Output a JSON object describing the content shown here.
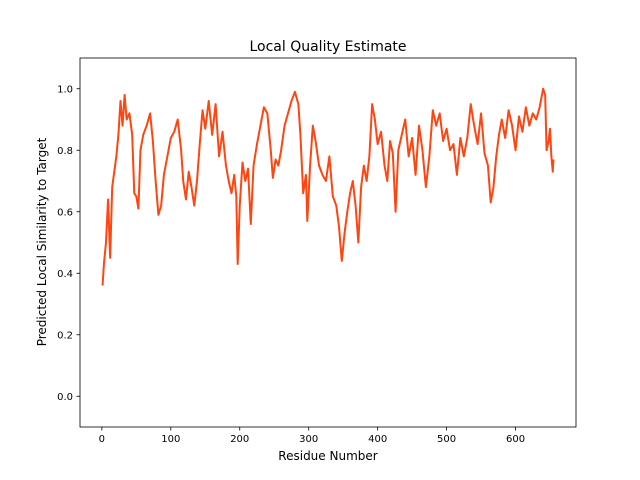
{
  "chart_data": {
    "type": "line",
    "title": "Local Quality Estimate",
    "x_label": "Residue Number",
    "y_label": "Predicted Local Similarity to Target",
    "series": [
      {
        "color": "#ff4511",
        "x": [
          1,
          3,
          6,
          9,
          12,
          15,
          18,
          21,
          24,
          27,
          30,
          33,
          36,
          40,
          44,
          47,
          50,
          53,
          56,
          60,
          65,
          70,
          74,
          78,
          82,
          86,
          90,
          95,
          100,
          105,
          110,
          115,
          118,
          122,
          126,
          130,
          134,
          138,
          142,
          146,
          150,
          155,
          160,
          165,
          170,
          175,
          180,
          184,
          188,
          192,
          195,
          197,
          200,
          204,
          208,
          212,
          216,
          220,
          225,
          230,
          235,
          240,
          245,
          248,
          252,
          256,
          260,
          265,
          270,
          275,
          280,
          285,
          288,
          292,
          296,
          298,
          302,
          306,
          310,
          315,
          320,
          325,
          330,
          335,
          340,
          344,
          348,
          352,
          356,
          360,
          364,
          368,
          372,
          376,
          380,
          384,
          388,
          392,
          396,
          400,
          405,
          410,
          414,
          418,
          422,
          426,
          430,
          435,
          440,
          445,
          450,
          455,
          460,
          465,
          470,
          475,
          480,
          485,
          490,
          495,
          500,
          505,
          510,
          515,
          520,
          525,
          530,
          535,
          540,
          545,
          550,
          555,
          560,
          564,
          568,
          572,
          576,
          580,
          585,
          590,
          595,
          600,
          605,
          610,
          615,
          620,
          625,
          630,
          635,
          640,
          643,
          645,
          648,
          650,
          652,
          654,
          655
        ],
        "values": [
          0.36,
          0.43,
          0.5,
          0.64,
          0.45,
          0.68,
          0.73,
          0.78,
          0.85,
          0.96,
          0.88,
          0.98,
          0.9,
          0.92,
          0.85,
          0.66,
          0.65,
          0.61,
          0.8,
          0.85,
          0.88,
          0.92,
          0.83,
          0.7,
          0.59,
          0.62,
          0.72,
          0.78,
          0.84,
          0.86,
          0.9,
          0.8,
          0.7,
          0.64,
          0.73,
          0.68,
          0.62,
          0.7,
          0.82,
          0.93,
          0.87,
          0.96,
          0.85,
          0.95,
          0.78,
          0.86,
          0.75,
          0.7,
          0.66,
          0.72,
          0.65,
          0.43,
          0.62,
          0.76,
          0.7,
          0.74,
          0.56,
          0.75,
          0.82,
          0.88,
          0.94,
          0.92,
          0.8,
          0.71,
          0.77,
          0.75,
          0.8,
          0.88,
          0.92,
          0.96,
          0.99,
          0.95,
          0.85,
          0.66,
          0.72,
          0.57,
          0.75,
          0.88,
          0.83,
          0.75,
          0.72,
          0.7,
          0.78,
          0.65,
          0.62,
          0.55,
          0.44,
          0.53,
          0.6,
          0.66,
          0.7,
          0.62,
          0.5,
          0.68,
          0.75,
          0.7,
          0.78,
          0.95,
          0.9,
          0.82,
          0.86,
          0.75,
          0.7,
          0.83,
          0.79,
          0.6,
          0.8,
          0.85,
          0.9,
          0.78,
          0.84,
          0.72,
          0.88,
          0.8,
          0.68,
          0.78,
          0.93,
          0.88,
          0.92,
          0.83,
          0.87,
          0.8,
          0.82,
          0.72,
          0.84,
          0.78,
          0.84,
          0.95,
          0.88,
          0.82,
          0.92,
          0.79,
          0.75,
          0.63,
          0.68,
          0.78,
          0.85,
          0.9,
          0.84,
          0.93,
          0.88,
          0.8,
          0.91,
          0.86,
          0.94,
          0.88,
          0.92,
          0.9,
          0.94,
          1.0,
          0.98,
          0.8,
          0.83,
          0.87,
          0.78,
          0.73,
          0.77
        ]
      }
    ],
    "xlim": [
      -31.7,
      687.7
    ],
    "ylim": [
      -0.1,
      1.1
    ],
    "xticks": [
      0,
      100,
      200,
      300,
      400,
      500,
      600
    ],
    "yticks": [
      {
        "value": 0,
        "label": "0.0"
      },
      {
        "value": 0.2,
        "label": "0.2"
      },
      {
        "value": 0.4,
        "label": "0.4"
      },
      {
        "value": 0.6,
        "label": "0.6"
      },
      {
        "value": 0.8,
        "label": "0.8"
      },
      {
        "value": 1,
        "label": "1.0"
      }
    ],
    "grid": false
  }
}
